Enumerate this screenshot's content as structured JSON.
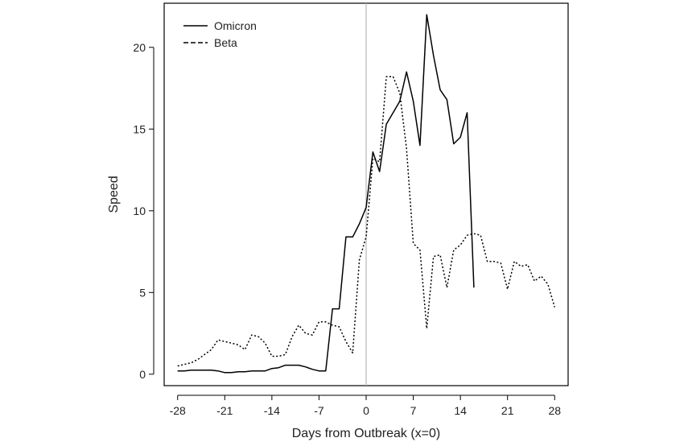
{
  "chart_data": {
    "type": "line",
    "title": "",
    "xlabel": "Days from Outbreak (x=0)",
    "ylabel": "Speed",
    "xlim": [
      -30,
      30
    ],
    "ylim": [
      -0.7,
      22.7
    ],
    "x_ticks": [
      -28,
      -21,
      -14,
      -7,
      0,
      7,
      14,
      21,
      28
    ],
    "x_tick_labels": [
      "-28",
      "-21",
      "-14",
      "-7",
      "0",
      "7",
      "14",
      "21",
      "28"
    ],
    "y_ticks": [
      0,
      5,
      10,
      15,
      20
    ],
    "y_tick_labels": [
      "0",
      "5",
      "10",
      "15",
      "20"
    ],
    "vertical_reference_line": 0,
    "grid": false,
    "legend": {
      "position": "top-left",
      "entries": [
        {
          "name": "Omicron",
          "style": "solid"
        },
        {
          "name": "Beta",
          "style": "dotted"
        }
      ]
    },
    "series": [
      {
        "name": "Omicron",
        "style": "solid",
        "color": "#000000",
        "x": [
          -28,
          -27,
          -26,
          -25,
          -24,
          -23,
          -22,
          -21,
          -20,
          -19,
          -18,
          -17,
          -16,
          -15,
          -14,
          -13,
          -12,
          -11,
          -10,
          -9,
          -8,
          -7,
          -6,
          -5,
          -4,
          -3,
          -2,
          -1,
          0,
          1,
          2,
          3,
          4,
          5,
          6,
          7,
          8,
          9,
          10,
          11,
          12,
          13,
          14,
          15,
          16
        ],
        "values": [
          0.2,
          0.2,
          0.25,
          0.25,
          0.25,
          0.25,
          0.2,
          0.1,
          0.1,
          0.15,
          0.15,
          0.2,
          0.2,
          0.2,
          0.35,
          0.4,
          0.55,
          0.55,
          0.55,
          0.45,
          0.3,
          0.2,
          0.2,
          4.0,
          4.0,
          8.4,
          8.4,
          9.2,
          10.2,
          13.6,
          12.4,
          15.3,
          16.0,
          16.7,
          18.5,
          16.7,
          14.0,
          22.0,
          19.5,
          17.4,
          16.8,
          14.1,
          14.5,
          16.0,
          5.3
        ]
      },
      {
        "name": "Beta",
        "style": "dotted",
        "color": "#000000",
        "x": [
          -28,
          -27,
          -26,
          -25,
          -24,
          -23,
          -22,
          -21,
          -20,
          -19,
          -18,
          -17,
          -16,
          -15,
          -14,
          -13,
          -12,
          -11,
          -10,
          -9,
          -8,
          -7,
          -6,
          -5,
          -4,
          -3,
          -2,
          -1,
          0,
          1,
          2,
          3,
          4,
          5,
          6,
          7,
          8,
          9,
          10,
          11,
          12,
          13,
          14,
          15,
          16,
          17,
          18,
          19,
          20,
          21,
          22,
          23,
          24,
          25,
          26,
          27,
          28
        ],
        "values": [
          0.5,
          0.6,
          0.7,
          0.9,
          1.2,
          1.5,
          2.1,
          2.0,
          1.9,
          1.8,
          1.5,
          2.4,
          2.3,
          1.9,
          1.1,
          1.1,
          1.2,
          2.3,
          3.0,
          2.5,
          2.4,
          3.2,
          3.2,
          3.0,
          2.9,
          2.0,
          1.3,
          7.0,
          8.4,
          13.2,
          13.0,
          18.2,
          18.2,
          17.2,
          13.8,
          8.0,
          7.6,
          2.8,
          7.2,
          7.3,
          5.3,
          7.6,
          7.9,
          8.5,
          8.6,
          8.5,
          6.9,
          6.9,
          6.8,
          5.2,
          6.9,
          6.6,
          6.7,
          5.7,
          6.0,
          5.5,
          4.1
        ]
      }
    ]
  }
}
